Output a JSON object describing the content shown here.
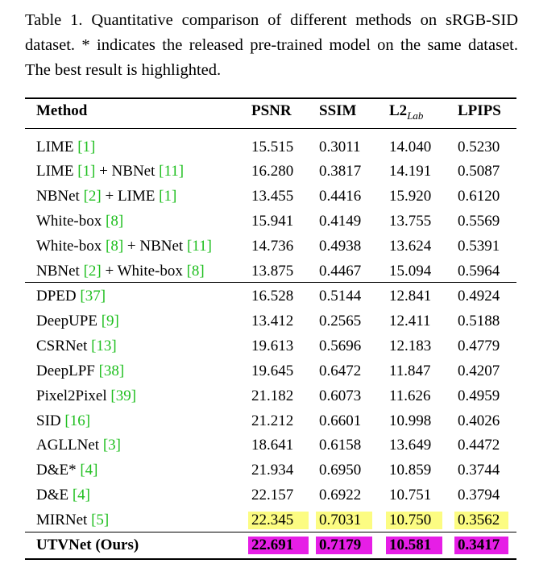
{
  "caption": "Table 1. Quantitative comparison of different methods on sRGB-SID dataset. * indicates the released pre-trained model on the same dataset. The best result is highlighted.",
  "headers": {
    "method": "Method",
    "psnr": "PSNR",
    "ssim": "SSIM",
    "l2": "L2",
    "l2_sub": "Lab",
    "lpips": "LPIPS"
  },
  "rows": [
    {
      "parts": [
        {
          "t": "LIME "
        },
        {
          "t": "[1]",
          "ref": true
        }
      ],
      "psnr": "15.515",
      "ssim": "0.3011",
      "l2": "14.040",
      "lpips": "0.5230"
    },
    {
      "parts": [
        {
          "t": "LIME "
        },
        {
          "t": "[1]",
          "ref": true
        },
        {
          "t": " + NBNet "
        },
        {
          "t": "[11]",
          "ref": true
        }
      ],
      "psnr": "16.280",
      "ssim": "0.3817",
      "l2": "14.191",
      "lpips": "0.5087"
    },
    {
      "parts": [
        {
          "t": "NBNet "
        },
        {
          "t": "[2]",
          "ref": true
        },
        {
          "t": " + LIME "
        },
        {
          "t": "[1]",
          "ref": true
        }
      ],
      "psnr": "13.455",
      "ssim": "0.4416",
      "l2": "15.920",
      "lpips": "0.6120"
    },
    {
      "parts": [
        {
          "t": "White-box "
        },
        {
          "t": "[8]",
          "ref": true
        }
      ],
      "psnr": "15.941",
      "ssim": "0.4149",
      "l2": "13.755",
      "lpips": "0.5569"
    },
    {
      "parts": [
        {
          "t": "White-box "
        },
        {
          "t": "[8]",
          "ref": true
        },
        {
          "t": " + NBNet "
        },
        {
          "t": "[11]",
          "ref": true
        }
      ],
      "psnr": "14.736",
      "ssim": "0.4938",
      "l2": "13.624",
      "lpips": "0.5391"
    },
    {
      "parts": [
        {
          "t": "NBNet "
        },
        {
          "t": "[2]",
          "ref": true
        },
        {
          "t": " + White-box "
        },
        {
          "t": "[8]",
          "ref": true
        }
      ],
      "psnr": "13.875",
      "ssim": "0.4467",
      "l2": "15.094",
      "lpips": "0.5964"
    },
    {
      "parts": [
        {
          "t": "DPED "
        },
        {
          "t": "[37]",
          "ref": true
        }
      ],
      "psnr": "16.528",
      "ssim": "0.5144",
      "l2": "12.841",
      "lpips": "0.4924"
    },
    {
      "parts": [
        {
          "t": "DeepUPE "
        },
        {
          "t": "[9]",
          "ref": true
        }
      ],
      "psnr": "13.412",
      "ssim": "0.2565",
      "l2": "12.411",
      "lpips": "0.5188"
    },
    {
      "parts": [
        {
          "t": "CSRNet "
        },
        {
          "t": "[13]",
          "ref": true
        }
      ],
      "psnr": "19.613",
      "ssim": "0.5696",
      "l2": "12.183",
      "lpips": "0.4779"
    },
    {
      "parts": [
        {
          "t": "DeepLPF "
        },
        {
          "t": "[38]",
          "ref": true
        }
      ],
      "psnr": "19.645",
      "ssim": "0.6472",
      "l2": "11.847",
      "lpips": "0.4207"
    },
    {
      "parts": [
        {
          "t": "Pixel2Pixel "
        },
        {
          "t": "[39]",
          "ref": true
        }
      ],
      "psnr": "21.182",
      "ssim": "0.6073",
      "l2": "11.626",
      "lpips": "0.4959"
    },
    {
      "parts": [
        {
          "t": "SID "
        },
        {
          "t": "[16]",
          "ref": true
        }
      ],
      "psnr": "21.212",
      "ssim": "0.6601",
      "l2": "10.998",
      "lpips": "0.4026"
    },
    {
      "parts": [
        {
          "t": "AGLLNet "
        },
        {
          "t": "[3]",
          "ref": true
        }
      ],
      "psnr": "18.641",
      "ssim": "0.6158",
      "l2": "13.649",
      "lpips": "0.4472"
    },
    {
      "parts": [
        {
          "t": "D&E* "
        },
        {
          "t": "[4]",
          "ref": true
        }
      ],
      "psnr": "21.934",
      "ssim": "0.6950",
      "l2": "10.859",
      "lpips": "0.3744"
    },
    {
      "parts": [
        {
          "t": "D&E "
        },
        {
          "t": "[4]",
          "ref": true
        }
      ],
      "psnr": "22.157",
      "ssim": "0.6922",
      "l2": "10.751",
      "lpips": "0.3794"
    },
    {
      "parts": [
        {
          "t": "MIRNet "
        },
        {
          "t": "[5]",
          "ref": true
        }
      ],
      "psnr": "22.345",
      "ssim": "0.7031",
      "l2": "10.750",
      "lpips": "0.3562",
      "highlight": "second"
    },
    {
      "parts": [
        {
          "t": "UTVNet (Ours)"
        }
      ],
      "psnr": "22.691",
      "ssim": "0.7179",
      "l2": "10.581",
      "lpips": "0.3417",
      "highlight": "best",
      "bold": true
    }
  ],
  "highlight_colors": {
    "second": "#fcfc82",
    "best": "#e61ee6"
  }
}
